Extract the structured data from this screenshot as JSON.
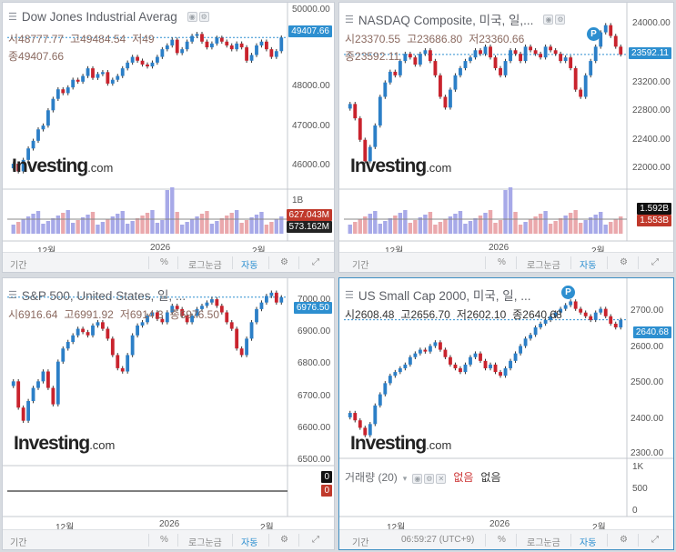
{
  "labels": {
    "period": "기간",
    "percent": "%",
    "log": "로그눈금",
    "auto": "자동",
    "settings_icon": "⚙",
    "expand_icon": "⤢",
    "x_dec": "12월",
    "x_2026": "2026",
    "x_feb": "2월",
    "time": "06:59:27 (UTC+9)",
    "logo_main": "Investing",
    "logo_com": ".com"
  },
  "panels": [
    {
      "title": "Dow Jones Industrial Averag",
      "open": "시48777.77",
      "high": "고49484.54",
      "low": "저49",
      "close": "종49407.66",
      "price_tag": "49407.66",
      "y_ticks": [
        "50000.00",
        "49000.00",
        "48000.00",
        "47000.00",
        "46000.00"
      ],
      "vol_ticks": [
        "1B"
      ],
      "vol_tag1": "627.043M",
      "vol_tag2": "573.162M",
      "chart_data": {
        "type": "candlestick",
        "ylim": [
          45600,
          50200
        ],
        "last": 49407.66,
        "closes": [
          46100,
          45900,
          46200,
          46500,
          46700,
          47000,
          47100,
          47500,
          47800,
          48050,
          47950,
          48100,
          48300,
          48250,
          48400,
          48600,
          48350,
          48450,
          48500,
          48200,
          48300,
          48400,
          48600,
          48750,
          48900,
          48800,
          48700,
          48650,
          48750,
          48900,
          49100,
          49200,
          49350,
          49000,
          49100,
          49300,
          49450,
          49500,
          49300,
          49150,
          49250,
          49400,
          49300,
          49200,
          49100,
          49250,
          49150,
          48800,
          48950,
          49200,
          49300,
          49100,
          48900,
          49050,
          49407
        ]
      }
    },
    {
      "title": "NASDAQ Composite, 미국, 일,...",
      "open": "시23370.55",
      "high": "고23686.80",
      "low": "저23360.66",
      "close": "종23592.11",
      "price_tag": "23592.11",
      "y_ticks": [
        "24000.00",
        "23600.00",
        "23200.00",
        "22800.00",
        "22400.00",
        "22000.00"
      ],
      "vol_tag1": "1.592B",
      "vol_tag2": "1.553B",
      "chart_data": {
        "type": "candlestick",
        "ylim": [
          21800,
          24250
        ],
        "last": 23592.11,
        "closes": [
          22900,
          22700,
          22400,
          22100,
          22300,
          22600,
          23000,
          23200,
          23350,
          23300,
          23500,
          23600,
          23550,
          23450,
          23600,
          23650,
          23500,
          23300,
          23000,
          22850,
          23100,
          23300,
          23400,
          23500,
          23550,
          23650,
          23600,
          23700,
          23550,
          23400,
          23300,
          23500,
          23650,
          23600,
          23500,
          23700,
          23650,
          23600,
          23550,
          23700,
          23650,
          23600,
          23500,
          23550,
          23400,
          23100,
          23000,
          23300,
          23500,
          23700,
          23900,
          24000,
          23850,
          23700,
          23592
        ]
      }
    },
    {
      "title": "S&P 500, United States, 일, ...",
      "open": "시6916.64",
      "high": "고6991.92",
      "low": "저6914.3",
      "close": "종6976.50",
      "price_tag": "6976.50",
      "y_ticks": [
        "7000.00",
        "6900.00",
        "6800.00",
        "6700.00",
        "6600.00",
        "6500.00"
      ],
      "vol_tag1": "0",
      "vol_tag2": "0",
      "chart_data": {
        "type": "candlestick",
        "ylim": [
          6480,
          7020
        ],
        "last": 6976.5,
        "closes": [
          6720,
          6640,
          6600,
          6660,
          6700,
          6720,
          6750,
          6700,
          6650,
          6780,
          6820,
          6840,
          6860,
          6880,
          6870,
          6860,
          6890,
          6900,
          6880,
          6850,
          6800,
          6760,
          6750,
          6800,
          6860,
          6890,
          6900,
          6920,
          6930,
          6910,
          6900,
          6930,
          6950,
          6940,
          6920,
          6900,
          6920,
          6940,
          6950,
          6960,
          6970,
          6950,
          6930,
          6900,
          6880,
          6820,
          6800,
          6850,
          6900,
          6940,
          6960,
          6980,
          6990,
          6960,
          6976
        ]
      }
    },
    {
      "title": "US Small Cap 2000, 미국, 일, ...",
      "open": "시2608.48",
      "high": "고2656.70",
      "low": "저2602.10",
      "close": "종2640.68",
      "price_tag": "2640.68",
      "y_ticks": [
        "2700.00",
        "2600.00",
        "2500.00",
        "2400.00",
        "2300.00"
      ],
      "vol_ticks": [
        "1K",
        "500",
        "0"
      ],
      "vol_label": "거래량 (20)",
      "vol_a": "없음",
      "vol_b": "없음",
      "chart_data": {
        "type": "candlestick",
        "ylim": [
          2280,
          2740
        ],
        "last": 2640.68,
        "closes": [
          2390,
          2370,
          2350,
          2330,
          2360,
          2410,
          2440,
          2470,
          2490,
          2500,
          2510,
          2520,
          2540,
          2550,
          2560,
          2555,
          2570,
          2580,
          2560,
          2540,
          2520,
          2510,
          2500,
          2520,
          2540,
          2550,
          2530,
          2510,
          2520,
          2500,
          2490,
          2510,
          2530,
          2550,
          2570,
          2590,
          2600,
          2620,
          2630,
          2640,
          2650,
          2660,
          2670,
          2680,
          2690,
          2670,
          2660,
          2650,
          2640,
          2660,
          2670,
          2650,
          2630,
          2620,
          2640
        ]
      }
    }
  ]
}
